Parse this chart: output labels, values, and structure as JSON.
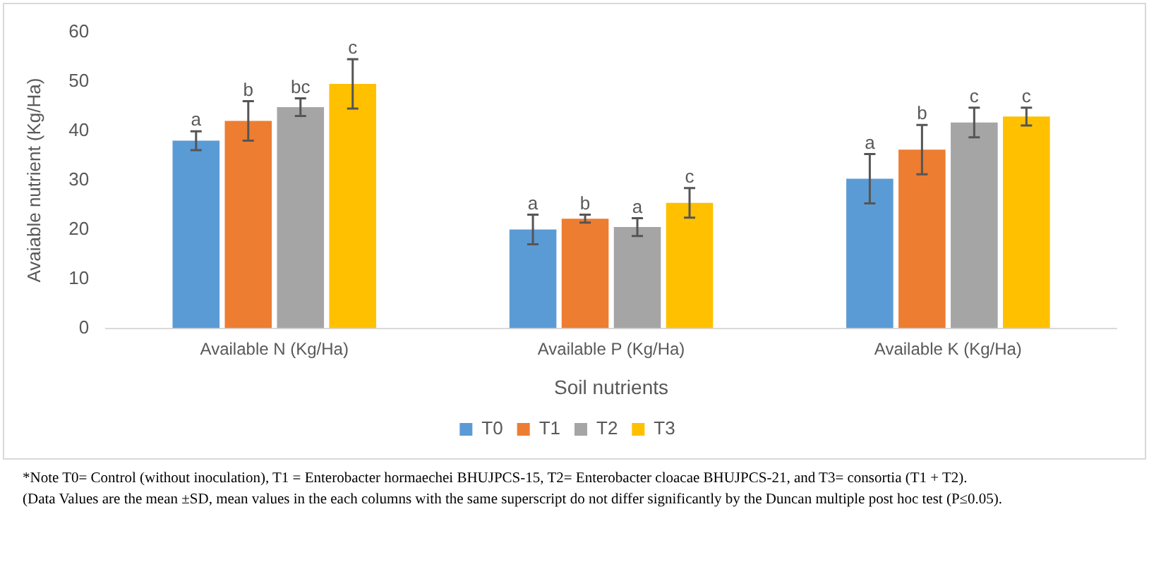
{
  "chart_data": {
    "type": "bar",
    "xlabel": "Soil nutrients",
    "ylabel": "Avaiable nutrient (Kg/Ha)",
    "categories": [
      "Available N (Kg/Ha)",
      "Available P (Kg/Ha)",
      "Available K (Kg/Ha)"
    ],
    "series": [
      {
        "name": "T0",
        "color": "#5b9bd5",
        "values": [
          38,
          20,
          30.3
        ],
        "errors": [
          1.9,
          3,
          5
        ],
        "value_labels": [
          "a",
          "a",
          "a"
        ]
      },
      {
        "name": "T1",
        "color": "#ed7d31",
        "values": [
          42,
          22.2,
          36.2
        ],
        "errors": [
          4,
          0.8,
          5
        ],
        "value_labels": [
          "b",
          "b",
          "b"
        ]
      },
      {
        "name": "T2",
        "color": "#a5a5a5",
        "values": [
          44.8,
          20.5,
          41.7
        ],
        "errors": [
          1.8,
          1.8,
          3
        ],
        "value_labels": [
          "bc",
          "a",
          "c"
        ]
      },
      {
        "name": "T3",
        "color": "#ffc000",
        "values": [
          49.5,
          25.4,
          42.9
        ],
        "errors": [
          5,
          3,
          1.8
        ],
        "value_labels": [
          "c",
          "c",
          "c"
        ]
      }
    ],
    "ylim": [
      0,
      60
    ],
    "yticks": [
      0,
      10,
      20,
      30,
      40,
      50,
      60
    ],
    "grid": false,
    "legend": "bottom",
    "annotations": [
      "*Note T0= Control (without inoculation), T1 = Enterobacter hormaechei BHUJPCS-15, T2= Enterobacter cloacae BHUJPCS-21, and T3= consortia (T1 + T2).",
      "(Data Values are the mean ±SD, mean values in the each columns with the same superscript do not differ significantly by the Duncan multiple post hoc test (P≤0.05)."
    ]
  }
}
